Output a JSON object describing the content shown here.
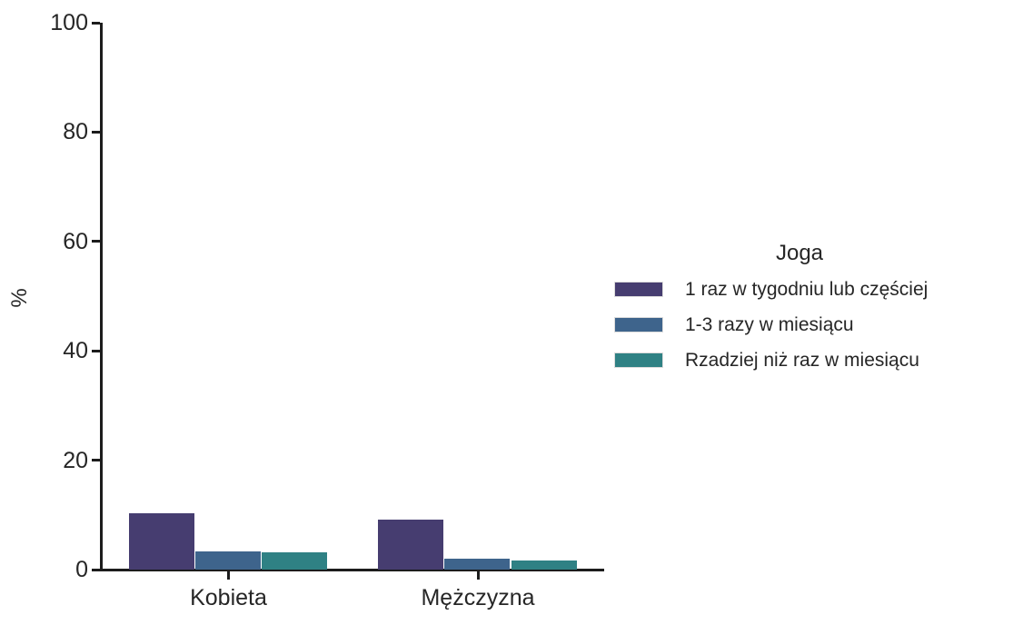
{
  "chart_data": {
    "type": "bar",
    "title": "",
    "xlabel": "",
    "ylabel": "%",
    "categories": [
      "Kobieta",
      "Mężczyzna"
    ],
    "series": [
      {
        "name": "1 raz w tygodniu lub częściej",
        "color": "#463d70",
        "values": [
          10.3,
          9.1
        ]
      },
      {
        "name": "1-3 razy w miesiącu",
        "color": "#3e648c",
        "values": [
          3.3,
          2.0
        ]
      },
      {
        "name": "Rzadziej niż raz w miesiącu",
        "color": "#2f8184",
        "values": [
          3.1,
          1.6
        ]
      }
    ],
    "legend": {
      "title": "Joga",
      "position": "right"
    },
    "ylim": [
      0,
      100
    ],
    "yticks": [
      0,
      20,
      40,
      60,
      80,
      100
    ],
    "grid": false,
    "axis_color": "#1c1c1c",
    "text_color": "#262626"
  }
}
